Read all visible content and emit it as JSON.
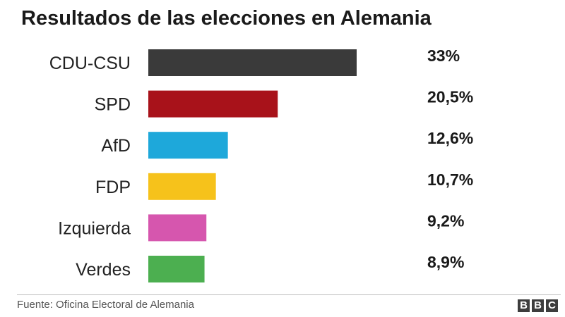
{
  "title": "Resultados de las elecciones en Alemania",
  "source": "Fuente: Oficina Electoral de Alemania",
  "logo": [
    "B",
    "B",
    "C"
  ],
  "chart_data": {
    "type": "bar",
    "orientation": "horizontal",
    "title": "Resultados de las elecciones en Alemania",
    "xlabel": "",
    "ylabel": "",
    "unit": "%",
    "grid": false,
    "categories": [
      "CDU-CSU",
      "SPD",
      "AfD",
      "FDP",
      "Izquierda",
      "Verdes"
    ],
    "values": [
      33,
      20.5,
      12.6,
      10.7,
      9.2,
      8.9
    ],
    "labels": [
      "33%",
      "20,5%",
      "12,6%",
      "10,7%",
      "9,2%",
      "8,9%"
    ],
    "colors": [
      "#3a3a3a",
      "#a8121a",
      "#1ea8da",
      "#f6c21b",
      "#d656ae",
      "#4caf50"
    ]
  }
}
